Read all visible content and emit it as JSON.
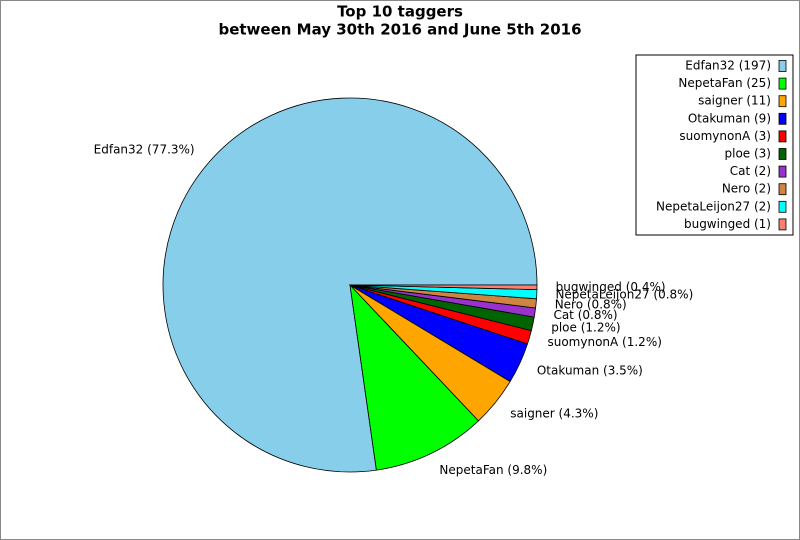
{
  "chart_data": {
    "type": "pie",
    "title": "Top 10 taggers",
    "subtitle": "between May 30th 2016 and June 5th 2016",
    "labels": [
      "Edfan32 (197)",
      "NepetaFan (25)",
      "saigner (11)",
      "Otakuman (9)",
      "suomynonA (3)",
      "ploe (3)",
      "Cat (2)",
      "Nero (2)",
      "NepetaLeijon27 (2)",
      "bugwinged (1)"
    ],
    "values": [
      197,
      25,
      11,
      9,
      3,
      3,
      2,
      2,
      2,
      1
    ],
    "value_labels": [
      "Edfan32 (77.3%)",
      "NepetaFan (9.8%)",
      "saigner (4.3%)",
      "Otakuman (3.5%)",
      "suomynonA (1.2%)",
      "ploe (1.2%)",
      "Cat (0.8%)",
      "Nero (0.8%)",
      "NepetaLeijon27 (0.8%)",
      "bugwinged (0.4%)"
    ],
    "colors": [
      "#87ceeb",
      "#00ff00",
      "#ffa500",
      "#0000ff",
      "#ff0000",
      "#006400",
      "#9932cc",
      "#cd853f",
      "#00ffff",
      "#fa8072"
    ],
    "legend": "upper right"
  }
}
